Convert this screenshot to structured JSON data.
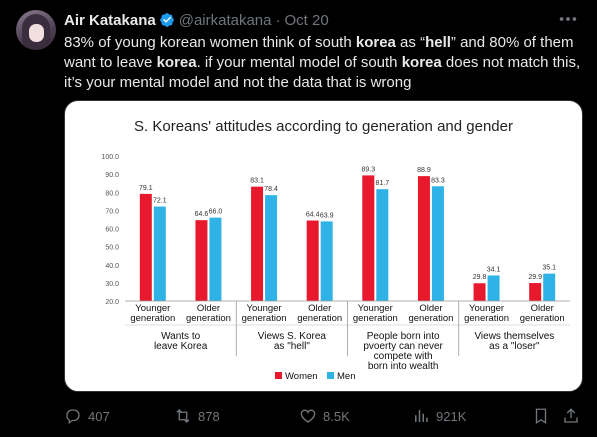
{
  "tweet": {
    "display_name": "Air Katakana",
    "handle": "@airkatakana",
    "separator": "·",
    "date": "Oct 20",
    "text_parts": [
      "83% of young korean women think of south ",
      "korea",
      " as “",
      "hell",
      "” and 80% of them want to leave ",
      "korea",
      ". if your mental model of south ",
      "korea",
      " does not match this, it’s your mental model and not the data that is wrong"
    ]
  },
  "actions": {
    "replies": "407",
    "reposts": "878",
    "likes": "8.5K",
    "views": "921K"
  },
  "icons": [
    "verified-badge-icon",
    "more-icon",
    "reply-icon",
    "repost-icon",
    "like-icon",
    "views-icon",
    "bookmark-icon",
    "share-icon"
  ],
  "colors": {
    "women": "#e8192c",
    "men": "#2fb3e6",
    "verified": "#1d9bf0",
    "muted": "#71767b"
  },
  "chart_data": {
    "type": "bar",
    "title": "S. Koreans' attitudes according to generation and gender",
    "y_ticks": [
      "100.0",
      "90.0",
      "80.0",
      "70.0",
      "60.0",
      "50.0",
      "40.0",
      "30.0",
      "20.0"
    ],
    "ylim": [
      20,
      100
    ],
    "groups": [
      {
        "label_lines": [
          "Wants to",
          "leave Korea"
        ],
        "subs": [
          {
            "label_lines": [
              "Younger",
              "generation"
            ],
            "women": 79.1,
            "men": 72.1,
            "women_label": "79.1",
            "men_label": "72.1"
          },
          {
            "label_lines": [
              "Older",
              "generation"
            ],
            "women": 64.6,
            "men": 66.0,
            "women_label": "64.6",
            "men_label": "66.0"
          }
        ]
      },
      {
        "label_lines": [
          "Views S. Korea",
          "as \"hell\""
        ],
        "subs": [
          {
            "label_lines": [
              "Younger",
              "generation"
            ],
            "women": 83.1,
            "men": 78.4,
            "women_label": "83.1",
            "men_label": "78.4"
          },
          {
            "label_lines": [
              "Older",
              "generation"
            ],
            "women": 64.4,
            "men": 63.9,
            "women_label": "64.4",
            "men_label": "63.9"
          }
        ]
      },
      {
        "label_lines": [
          "People born into",
          "pvoerty can never",
          "compete with",
          "born into wealth"
        ],
        "subs": [
          {
            "label_lines": [
              "Younger",
              "generation"
            ],
            "women": 89.3,
            "men": 81.7,
            "women_label": "89.3",
            "men_label": "81.7"
          },
          {
            "label_lines": [
              "Older",
              "generation"
            ],
            "women": 88.9,
            "men": 83.3,
            "women_label": "88.9",
            "men_label": "83.3"
          }
        ]
      },
      {
        "label_lines": [
          "Views themselves",
          "as a \"loser\""
        ],
        "subs": [
          {
            "label_lines": [
              "Younger",
              "generation"
            ],
            "women": 29.8,
            "men": 34.1,
            "women_label": "29.8",
            "men_label": "34.1"
          },
          {
            "label_lines": [
              "Older",
              "generation"
            ],
            "women": 29.9,
            "men": 35.1,
            "women_label": "29.9",
            "men_label": "35.1"
          }
        ]
      }
    ],
    "series": [
      {
        "name": "Women",
        "color": "#e8192c"
      },
      {
        "name": "Men",
        "color": "#2fb3e6"
      }
    ],
    "legend": "bottom-center"
  }
}
